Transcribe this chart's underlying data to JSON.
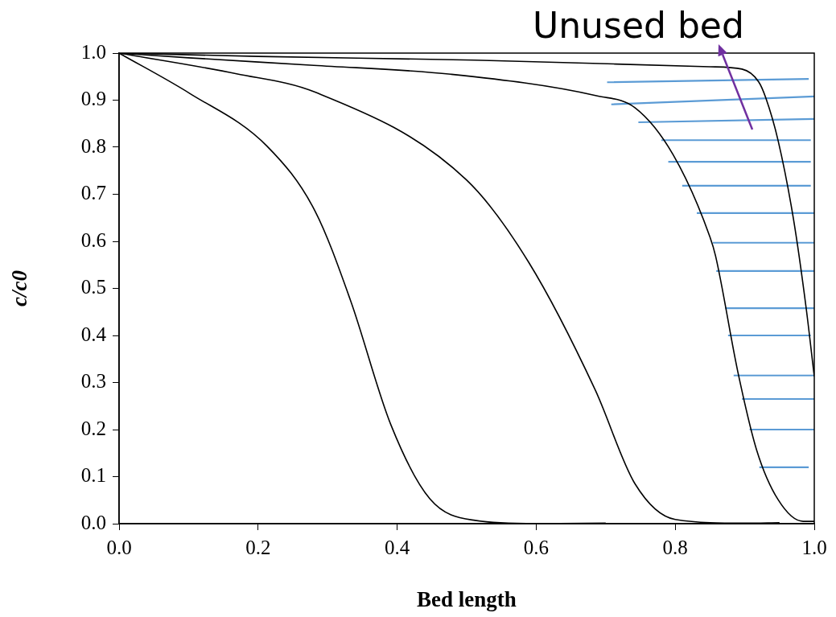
{
  "chart_data": {
    "type": "line",
    "xlabel": "Bed length",
    "ylabel": "c/c0",
    "annotations": [
      "Unused bed"
    ],
    "xlim": [
      0,
      1
    ],
    "ylim": [
      0,
      1
    ],
    "xticks": [
      {
        "value": 0,
        "label": "0.0"
      },
      {
        "value": 0.2,
        "label": "0.2"
      },
      {
        "value": 0.4,
        "label": "0.4"
      },
      {
        "value": 0.6,
        "label": "0.6"
      },
      {
        "value": 0.8,
        "label": "0.8"
      },
      {
        "value": 1,
        "label": "1.0"
      }
    ],
    "yticks": [
      {
        "value": 0,
        "label": "0.0"
      },
      {
        "value": 0.1,
        "label": "0.1"
      },
      {
        "value": 0.2,
        "label": "0.2"
      },
      {
        "value": 0.3,
        "label": "0.3"
      },
      {
        "value": 0.4,
        "label": "0.4"
      },
      {
        "value": 0.5,
        "label": "0.5"
      },
      {
        "value": 0.6,
        "label": "0.6"
      },
      {
        "value": 0.7,
        "label": "0.7"
      },
      {
        "value": 0.8,
        "label": "0.8"
      },
      {
        "value": 0.9,
        "label": "0.9"
      },
      {
        "value": 1,
        "label": "1.0"
      }
    ],
    "grid": false,
    "legend": false,
    "marker": "none",
    "line_style": "solid",
    "series": [
      {
        "color": "#000000",
        "x": [
          0,
          0.102,
          0.213,
          0.282,
          0.333,
          0.391,
          0.447,
          0.512,
          0.6,
          0.7
        ],
        "values": [
          1,
          0.914,
          0.802,
          0.664,
          0.474,
          0.21,
          0.053,
          0.007,
          0,
          0.001
        ]
      },
      {
        "color": "#000000",
        "x": [
          0,
          0.169,
          0.282,
          0.5,
          0.589,
          0.685,
          0.742,
          0.8,
          0.9,
          0.95
        ],
        "values": [
          1,
          0.956,
          0.917,
          0.73,
          0.556,
          0.284,
          0.085,
          0.009,
          0.001,
          0.002
        ]
      },
      {
        "color": "#000000",
        "x": [
          0,
          0.1,
          0.28,
          0.477,
          0.688,
          0.742,
          0.797,
          0.85,
          0.858,
          0.89,
          0.917,
          0.948,
          0.984,
          1.0
        ],
        "values": [
          1,
          0.99,
          0.974,
          0.955,
          0.909,
          0.884,
          0.784,
          0.609,
          0.569,
          0.323,
          0.157,
          0.051,
          0.005,
          0.005
        ]
      },
      {
        "color": "#000000",
        "x": [
          0,
          0.2,
          0.512,
          0.85,
          0.896,
          0.92,
          0.93,
          0.948,
          0.97,
          0.988,
          1.0
        ],
        "values": [
          1,
          0.993,
          0.985,
          0.971,
          0.966,
          0.939,
          0.906,
          0.814,
          0.648,
          0.462,
          0.313
        ]
      },
      {
        "color": "#5b9bd5",
        "x": [
          0.702,
          0.992
        ],
        "values": [
          0.938,
          0.945
        ]
      },
      {
        "color": "#5b9bd5",
        "x": [
          0.708,
          1.0
        ],
        "values": [
          0.891,
          0.908
        ]
      },
      {
        "color": "#5b9bd5",
        "x": [
          0.747,
          1.0
        ],
        "values": [
          0.853,
          0.86
        ]
      },
      {
        "color": "#5b9bd5",
        "x": [
          0.78,
          0.995
        ],
        "values": [
          0.815,
          0.815
        ]
      },
      {
        "color": "#5b9bd5",
        "x": [
          0.79,
          0.995
        ],
        "values": [
          0.769,
          0.769
        ]
      },
      {
        "color": "#5b9bd5",
        "x": [
          0.81,
          0.995
        ],
        "values": [
          0.718,
          0.718
        ]
      },
      {
        "color": "#5b9bd5",
        "x": [
          0.831,
          1.0
        ],
        "values": [
          0.66,
          0.66
        ]
      },
      {
        "color": "#5b9bd5",
        "x": [
          0.854,
          1.0
        ],
        "values": [
          0.597,
          0.597
        ]
      },
      {
        "color": "#5b9bd5",
        "x": [
          0.859,
          1.0
        ],
        "values": [
          0.537,
          0.537
        ]
      },
      {
        "color": "#5b9bd5",
        "x": [
          0.872,
          1.0
        ],
        "values": [
          0.458,
          0.458
        ]
      },
      {
        "color": "#5b9bd5",
        "x": [
          0.876,
          0.995
        ],
        "values": [
          0.4,
          0.4
        ]
      },
      {
        "color": "#5b9bd5",
        "x": [
          0.884,
          1.0
        ],
        "values": [
          0.315,
          0.315
        ]
      },
      {
        "color": "#5b9bd5",
        "x": [
          0.896,
          1.0
        ],
        "values": [
          0.265,
          0.265
        ]
      },
      {
        "color": "#5b9bd5",
        "x": [
          0.907,
          1.0
        ],
        "values": [
          0.2,
          0.2
        ]
      },
      {
        "color": "#5b9bd5",
        "x": [
          0.921,
          0.992
        ],
        "values": [
          0.12,
          0.12
        ]
      }
    ]
  }
}
